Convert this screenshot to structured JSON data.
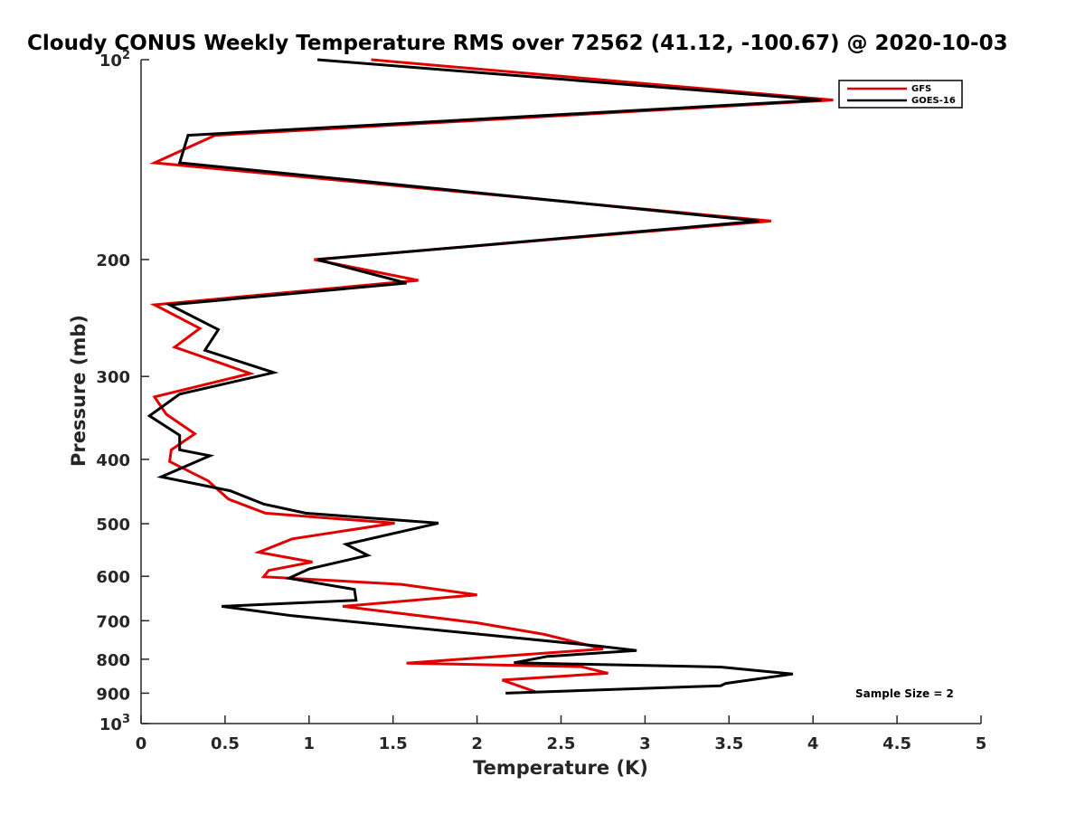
{
  "chart_data": {
    "type": "line",
    "title": "Cloudy CONUS Weekly Temperature RMS over 72562 (41.12, -100.67) @ 2020-10-03",
    "xlabel": "Temperature (K)",
    "ylabel": "Pressure (mb)",
    "xlim": [
      0,
      5
    ],
    "ylim": [
      100,
      1000
    ],
    "y_scale": "log",
    "y_reversed": true,
    "xticks": [
      0,
      0.5,
      1,
      1.5,
      2,
      2.5,
      3,
      3.5,
      4,
      4.5,
      5
    ],
    "xtick_labels": [
      "0",
      "0.5",
      "1",
      "1.5",
      "2",
      "2.5",
      "3",
      "3.5",
      "4",
      "4.5",
      "5"
    ],
    "yticks": [
      {
        "value": 100,
        "base": "10",
        "exp": "2"
      },
      {
        "value": 200,
        "label": "200"
      },
      {
        "value": 300,
        "label": "300"
      },
      {
        "value": 400,
        "label": "400"
      },
      {
        "value": 500,
        "label": "500"
      },
      {
        "value": 600,
        "label": "600"
      },
      {
        "value": 700,
        "label": "700"
      },
      {
        "value": 800,
        "label": "800"
      },
      {
        "value": 900,
        "label": "900"
      },
      {
        "value": 1000,
        "base": "10",
        "exp": "3"
      }
    ],
    "grid": false,
    "legend_position": "top-right",
    "annotation": "Sample Size = 2",
    "series": [
      {
        "name": "GFS",
        "color": "#e00000",
        "points": [
          [
            1.37,
            100
          ],
          [
            4.12,
            115
          ],
          [
            0.44,
            130
          ],
          [
            0.08,
            143
          ],
          [
            3.75,
            175
          ],
          [
            1.03,
            200
          ],
          [
            1.65,
            215
          ],
          [
            0.08,
            234
          ],
          [
            0.35,
            254
          ],
          [
            0.2,
            271
          ],
          [
            0.65,
            297
          ],
          [
            0.08,
            322
          ],
          [
            0.15,
            342
          ],
          [
            0.32,
            366
          ],
          [
            0.18,
            387
          ],
          [
            0.17,
            403
          ],
          [
            0.4,
            431
          ],
          [
            0.52,
            459
          ],
          [
            0.74,
            482
          ],
          [
            1.51,
            499
          ],
          [
            0.9,
            527
          ],
          [
            0.7,
            552
          ],
          [
            1.02,
            571
          ],
          [
            0.76,
            588
          ],
          [
            0.73,
            601
          ],
          [
            1.55,
            617
          ],
          [
            2.0,
            640
          ],
          [
            1.2,
            666
          ],
          [
            2.0,
            705
          ],
          [
            2.4,
            734
          ],
          [
            2.75,
            772
          ],
          [
            2.05,
            795
          ],
          [
            1.58,
            811
          ],
          [
            2.62,
            821
          ],
          [
            2.78,
            840
          ],
          [
            2.15,
            860
          ],
          [
            2.35,
            896
          ]
        ]
      },
      {
        "name": "GOES-16",
        "color": "#000000",
        "points": [
          [
            1.05,
            100
          ],
          [
            4.05,
            115
          ],
          [
            0.28,
            130
          ],
          [
            0.23,
            143
          ],
          [
            3.68,
            175
          ],
          [
            1.05,
            200
          ],
          [
            1.58,
            217
          ],
          [
            0.17,
            234
          ],
          [
            0.46,
            255
          ],
          [
            0.38,
            274
          ],
          [
            0.79,
            296
          ],
          [
            0.23,
            319
          ],
          [
            0.05,
            344
          ],
          [
            0.23,
            368
          ],
          [
            0.23,
            387
          ],
          [
            0.41,
            395
          ],
          [
            0.12,
            425
          ],
          [
            0.53,
            446
          ],
          [
            0.73,
            467
          ],
          [
            0.98,
            482
          ],
          [
            1.77,
            499
          ],
          [
            1.22,
            537
          ],
          [
            1.35,
            558
          ],
          [
            1.0,
            585
          ],
          [
            0.88,
            604
          ],
          [
            1.27,
            628
          ],
          [
            1.28,
            652
          ],
          [
            0.48,
            666
          ],
          [
            0.9,
            688
          ],
          [
            2.72,
            764
          ],
          [
            2.95,
            776
          ],
          [
            2.42,
            792
          ],
          [
            2.22,
            810
          ],
          [
            3.45,
            822
          ],
          [
            3.88,
            842
          ],
          [
            3.48,
            870
          ],
          [
            3.45,
            877
          ],
          [
            2.17,
            900
          ]
        ]
      }
    ]
  }
}
